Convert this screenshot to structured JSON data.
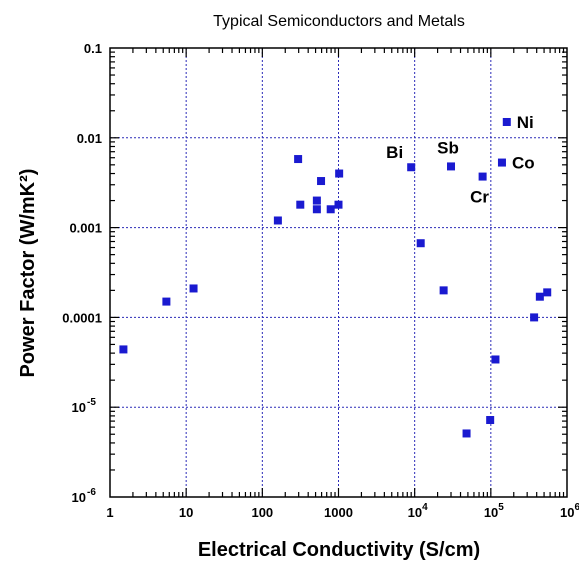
{
  "chart_data": {
    "type": "scatter",
    "title": "Typical Semiconductors and Metals",
    "xlabel": "Electrical Conductivity (S/cm)",
    "ylabel": "Power Factor (W/mK²)",
    "x_scale": "log",
    "y_scale": "log",
    "xlim": [
      1,
      1000000
    ],
    "ylim": [
      1e-06,
      0.1
    ],
    "grid": true,
    "grid_style": "dotted",
    "marker": "square",
    "marker_color": "#1a1ad0",
    "grid_color": "#2b2bb8",
    "x_tick_labels": [
      {
        "value": 1,
        "main": "1"
      },
      {
        "value": 10,
        "main": "10"
      },
      {
        "value": 100,
        "main": "100"
      },
      {
        "value": 1000,
        "main": "1000"
      },
      {
        "value": 10000,
        "main": "10",
        "exp": "4"
      },
      {
        "value": 100000,
        "main": "10",
        "exp": "5"
      },
      {
        "value": 1000000,
        "main": "10",
        "exp": "6"
      }
    ],
    "y_tick_labels": [
      {
        "value": 0.1,
        "main": "0.1"
      },
      {
        "value": 0.01,
        "main": "0.01"
      },
      {
        "value": 0.001,
        "main": "0.001"
      },
      {
        "value": 0.0001,
        "main": "0.0001"
      },
      {
        "value": 1e-05,
        "main": "10",
        "exp": "-5"
      },
      {
        "value": 1e-06,
        "main": "10",
        "exp": "-6"
      }
    ],
    "points": [
      {
        "x": 1.5,
        "y": 4.4e-05
      },
      {
        "x": 5.5,
        "y": 0.00015
      },
      {
        "x": 12.5,
        "y": 0.00021
      },
      {
        "x": 160,
        "y": 0.0012
      },
      {
        "x": 295,
        "y": 0.0058
      },
      {
        "x": 315,
        "y": 0.0018
      },
      {
        "x": 520,
        "y": 0.002
      },
      {
        "x": 520,
        "y": 0.0016
      },
      {
        "x": 590,
        "y": 0.0033
      },
      {
        "x": 790,
        "y": 0.0016
      },
      {
        "x": 1000,
        "y": 0.0018
      },
      {
        "x": 1020,
        "y": 0.004
      },
      {
        "x": 9000,
        "y": 0.0047
      },
      {
        "x": 12000,
        "y": 0.00067
      },
      {
        "x": 24000,
        "y": 0.0002
      },
      {
        "x": 30000,
        "y": 0.0048
      },
      {
        "x": 48000,
        "y": 5.1e-06
      },
      {
        "x": 78000,
        "y": 0.0037
      },
      {
        "x": 98000,
        "y": 7.2e-06
      },
      {
        "x": 115000,
        "y": 3.4e-05
      },
      {
        "x": 140000,
        "y": 0.0053
      },
      {
        "x": 162000,
        "y": 0.015
      },
      {
        "x": 370000,
        "y": 0.0001
      },
      {
        "x": 440000,
        "y": 0.00017
      },
      {
        "x": 550000,
        "y": 0.00019
      }
    ],
    "annotations": [
      {
        "text": "Bi",
        "x": 9000,
        "y": 0.0047,
        "anchor": "upper-left"
      },
      {
        "text": "Sb",
        "x": 30000,
        "y": 0.0048,
        "anchor": "above"
      },
      {
        "text": "Cr",
        "x": 78000,
        "y": 0.0037,
        "anchor": "below-left"
      },
      {
        "text": "Co",
        "x": 140000,
        "y": 0.0053,
        "anchor": "right"
      },
      {
        "text": "Ni",
        "x": 162000,
        "y": 0.015,
        "anchor": "right"
      }
    ]
  }
}
